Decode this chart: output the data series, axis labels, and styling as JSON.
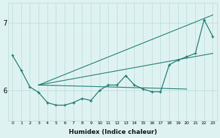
{
  "x": [
    0,
    1,
    2,
    3,
    4,
    5,
    6,
    7,
    8,
    9,
    10,
    11,
    12,
    13,
    14,
    15,
    16,
    17,
    18,
    19,
    20,
    21,
    22,
    23
  ],
  "y_main": [
    6.52,
    6.3,
    6.05,
    5.97,
    5.82,
    5.78,
    5.78,
    5.82,
    5.88,
    5.85,
    6.0,
    6.08,
    6.08,
    6.22,
    6.08,
    6.02,
    5.98,
    5.98,
    6.38,
    6.45,
    6.5,
    6.55,
    7.05,
    6.8
  ],
  "envelope_start_x": 3,
  "envelope_start_y": 6.08,
  "upper_end_x": 23,
  "upper_end_y": 7.12,
  "lower_end_x": 20,
  "lower_end_y": 6.02,
  "trend1_start_x": 3,
  "trend1_start_y": 6.08,
  "trend1_end_x": 23,
  "trend1_end_y": 6.55,
  "trend2_start_x": 3,
  "trend2_start_y": 6.08,
  "trend2_end_x": 23,
  "trend2_end_y": 6.02,
  "line_color": "#1a7a6e",
  "bg_color": "#dff2f2",
  "grid_color": "#b8d8d8",
  "xlabel": "Humidex (Indice chaleur)",
  "yticks": [
    6,
    7
  ],
  "ylim": [
    5.55,
    7.3
  ],
  "xlim": [
    -0.5,
    23.5
  ]
}
